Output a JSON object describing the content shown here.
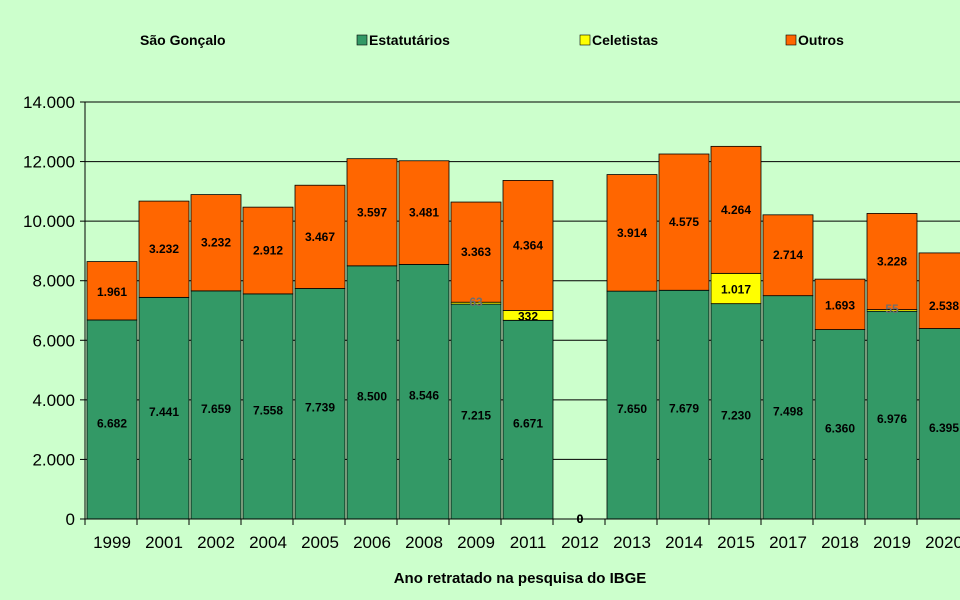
{
  "chart_data": {
    "type": "bar",
    "stacked": true,
    "title": "São Gonçalo",
    "xlabel": "Ano retratado na pesquisa do IBGE",
    "ylabel": "",
    "ylim": [
      0,
      14000
    ],
    "yticks": [
      "0",
      "2.000",
      "4.000",
      "6.000",
      "8.000",
      "10.000",
      "12.000",
      "14.000"
    ],
    "ytick_values": [
      0,
      2000,
      4000,
      6000,
      8000,
      10000,
      12000,
      14000
    ],
    "grid": true,
    "legend_position": "top",
    "categories": [
      "1999",
      "2001",
      "2002",
      "2004",
      "2005",
      "2006",
      "2008",
      "2009",
      "2011",
      "2012",
      "2013",
      "2014",
      "2015",
      "2017",
      "2018",
      "2019",
      "2020"
    ],
    "series": [
      {
        "name": "Estatutários",
        "color": "#339966",
        "values": [
          6682,
          7441,
          7659,
          7558,
          7739,
          8500,
          8546,
          7215,
          6671,
          0,
          7650,
          7679,
          7230,
          7498,
          6360,
          6976,
          6395
        ],
        "labels": [
          "6.682",
          "7.441",
          "7.659",
          "7.558",
          "7.739",
          "8.500",
          "8.546",
          "7.215",
          "6.671",
          "0",
          "7.650",
          "7.679",
          "7.230",
          "7.498",
          "6.360",
          "6.976",
          "6.395"
        ]
      },
      {
        "name": "Celetistas",
        "color": "#ffff00",
        "values": [
          0,
          0,
          0,
          0,
          0,
          0,
          0,
          63,
          332,
          0,
          0,
          0,
          1017,
          0,
          0,
          55,
          0
        ],
        "labels": [
          "",
          "",
          "",
          "",
          "",
          "",
          "",
          "63",
          "332",
          "0",
          "",
          "",
          "1.017",
          "",
          "",
          "55",
          ""
        ]
      },
      {
        "name": "Outros",
        "color": "#ff6600",
        "values": [
          1961,
          3232,
          3232,
          2912,
          3467,
          3597,
          3481,
          3363,
          4364,
          0,
          3914,
          4575,
          4264,
          2714,
          1693,
          3228,
          2538
        ],
        "labels": [
          "1.961",
          "3.232",
          "3.232",
          "2.912",
          "3.467",
          "3.597",
          "3.481",
          "3.363",
          "4.364",
          "0",
          "3.914",
          "4.575",
          "4.264",
          "2.714",
          "1.693",
          "3.228",
          "2.538"
        ]
      }
    ]
  }
}
